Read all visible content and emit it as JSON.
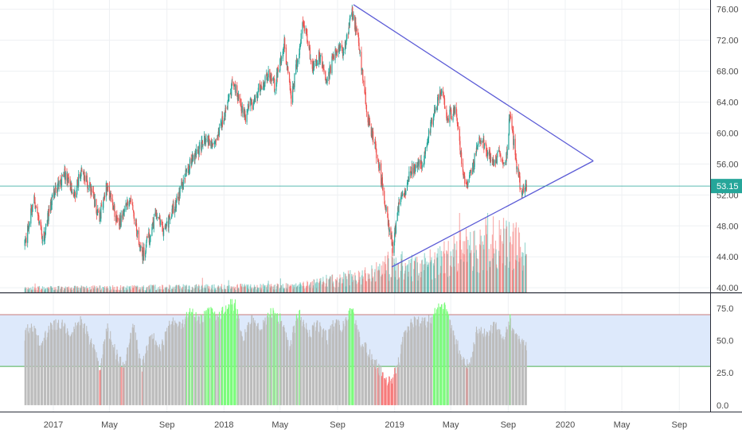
{
  "colors": {
    "up": "#26a69a",
    "down": "#ef5350",
    "triangle": "#5b5bd6",
    "price_line": "#26a69a",
    "grid": "#eef0f3",
    "axis_text": "#4a4a4a",
    "rsi_fill": "#bdbdbd",
    "rsi_band": "#dde9fb",
    "rsi_upper_line": "#c97b7b",
    "rsi_lower_line": "#4caf50",
    "rsi_overbought": "#7cfc7c",
    "rsi_oversold": "#f77b7b",
    "price_label_bg": "#26a69a"
  },
  "chart_data": [
    {
      "type": "candlestick",
      "y_ticks": [
        "76.00",
        "72.00",
        "68.00",
        "64.00",
        "60.00",
        "56.00",
        "52.00",
        "48.00",
        "44.00",
        "40.00"
      ],
      "ylim": [
        39.4,
        77.2
      ],
      "last_price": 53.15,
      "last_price_label": "53.15",
      "price_path": [
        [
          "2016-11-01",
          45.5
        ],
        [
          "2016-11-20",
          51.5
        ],
        [
          "2016-12-10",
          46.0
        ],
        [
          "2016-12-31",
          52.0
        ],
        [
          "2017-01-25",
          54.8
        ],
        [
          "2017-02-15",
          52.0
        ],
        [
          "2017-03-01",
          55.0
        ],
        [
          "2017-03-20",
          53.0
        ],
        [
          "2017-04-10",
          49.0
        ],
        [
          "2017-04-25",
          53.5
        ],
        [
          "2017-05-20",
          48.0
        ],
        [
          "2017-06-15",
          51.5
        ],
        [
          "2017-07-10",
          44.0
        ],
        [
          "2017-08-10",
          49.5
        ],
        [
          "2017-08-25",
          47.0
        ],
        [
          "2017-09-20",
          51.0
        ],
        [
          "2017-10-20",
          56.0
        ],
        [
          "2017-11-25",
          59.5
        ],
        [
          "2017-12-15",
          58.5
        ],
        [
          "2018-01-20",
          66.5
        ],
        [
          "2018-02-15",
          62.0
        ],
        [
          "2018-03-15",
          65.5
        ],
        [
          "2018-04-05",
          67.5
        ],
        [
          "2018-04-20",
          66.0
        ],
        [
          "2018-05-10",
          71.5
        ],
        [
          "2018-05-25",
          64.5
        ],
        [
          "2018-06-20",
          74.5
        ],
        [
          "2018-07-10",
          68.5
        ],
        [
          "2018-07-25",
          70.0
        ],
        [
          "2018-08-10",
          66.5
        ],
        [
          "2018-08-25",
          70.5
        ],
        [
          "2018-09-15",
          70.5
        ],
        [
          "2018-10-01",
          76.0
        ],
        [
          "2018-10-15",
          72.0
        ],
        [
          "2018-11-05",
          62.0
        ],
        [
          "2018-11-25",
          57.0
        ],
        [
          "2018-12-15",
          50.0
        ],
        [
          "2018-12-28",
          45.0
        ],
        [
          "2019-01-10",
          50.5
        ],
        [
          "2019-02-05",
          55.0
        ],
        [
          "2019-03-01",
          56.0
        ],
        [
          "2019-03-20",
          61.0
        ],
        [
          "2019-04-10",
          65.5
        ],
        [
          "2019-04-25",
          62.0
        ],
        [
          "2019-05-10",
          63.0
        ],
        [
          "2019-06-01",
          53.0
        ],
        [
          "2019-06-15",
          55.0
        ],
        [
          "2019-07-01",
          59.5
        ],
        [
          "2019-07-15",
          58.0
        ],
        [
          "2019-08-01",
          56.0
        ],
        [
          "2019-08-15",
          57.5
        ],
        [
          "2019-08-25",
          55.0
        ],
        [
          "2019-09-05",
          62.5
        ],
        [
          "2019-09-15",
          57.5
        ],
        [
          "2019-09-30",
          52.0
        ],
        [
          "2019-10-10",
          53.15
        ]
      ],
      "triangle": {
        "upper": [
          [
            "2018-10-05",
            76.6
          ],
          [
            "2020-03-01",
            56.4
          ]
        ],
        "lower": [
          [
            "2018-12-26",
            42.7
          ],
          [
            "2020-03-01",
            56.4
          ]
        ]
      },
      "volume": {
        "ylim": [
          0,
          60
        ],
        "path": [
          [
            "2016-11-01",
            2
          ],
          [
            "2018-06-01",
            3
          ],
          [
            "2018-09-01",
            6
          ],
          [
            "2018-11-15",
            9
          ],
          [
            "2018-12-25",
            14
          ],
          [
            "2019-03-01",
            12
          ],
          [
            "2019-05-01",
            18
          ],
          [
            "2019-08-01",
            25
          ],
          [
            "2019-10-10",
            22
          ]
        ]
      }
    },
    {
      "type": "area",
      "y_ticks": [
        "75.0",
        "50.0",
        "25.0",
        "0.0"
      ],
      "ylim": [
        -5,
        86
      ],
      "upper_band": 70,
      "lower_band": 30,
      "rsi_path": [
        [
          "2016-11-01",
          55
        ],
        [
          "2016-11-15",
          63
        ],
        [
          "2016-12-05",
          45
        ],
        [
          "2016-12-25",
          60
        ],
        [
          "2017-01-20",
          64
        ],
        [
          "2017-02-05",
          52
        ],
        [
          "2017-03-01",
          66
        ],
        [
          "2017-03-25",
          48
        ],
        [
          "2017-04-12",
          30
        ],
        [
          "2017-04-26",
          62
        ],
        [
          "2017-05-15",
          40
        ],
        [
          "2017-06-01",
          28
        ],
        [
          "2017-06-20",
          62
        ],
        [
          "2017-07-10",
          30
        ],
        [
          "2017-07-28",
          55
        ],
        [
          "2017-08-20",
          45
        ],
        [
          "2017-09-10",
          64
        ],
        [
          "2017-10-01",
          60
        ],
        [
          "2017-10-20",
          72
        ],
        [
          "2017-11-10",
          65
        ],
        [
          "2017-11-30",
          72
        ],
        [
          "2017-12-20",
          68
        ],
        [
          "2018-01-10",
          77
        ],
        [
          "2018-01-25",
          78
        ],
        [
          "2018-02-10",
          50
        ],
        [
          "2018-03-01",
          66
        ],
        [
          "2018-03-20",
          58
        ],
        [
          "2018-04-10",
          72
        ],
        [
          "2018-05-01",
          67
        ],
        [
          "2018-05-20",
          44
        ],
        [
          "2018-06-10",
          73
        ],
        [
          "2018-07-01",
          55
        ],
        [
          "2018-07-20",
          62
        ],
        [
          "2018-08-10",
          52
        ],
        [
          "2018-08-25",
          63
        ],
        [
          "2018-09-15",
          60
        ],
        [
          "2018-10-01",
          74
        ],
        [
          "2018-10-20",
          48
        ],
        [
          "2018-11-10",
          40
        ],
        [
          "2018-11-25",
          30
        ],
        [
          "2018-12-10",
          22
        ],
        [
          "2018-12-25",
          16
        ],
        [
          "2019-01-10",
          34
        ],
        [
          "2019-01-25",
          60
        ],
        [
          "2019-02-15",
          66
        ],
        [
          "2019-03-10",
          63
        ],
        [
          "2019-04-01",
          72
        ],
        [
          "2019-04-15",
          78
        ],
        [
          "2019-05-05",
          55
        ],
        [
          "2019-05-25",
          38
        ],
        [
          "2019-06-10",
          30
        ],
        [
          "2019-06-25",
          58
        ],
        [
          "2019-07-15",
          55
        ],
        [
          "2019-08-05",
          62
        ],
        [
          "2019-08-20",
          48
        ],
        [
          "2019-09-05",
          66
        ],
        [
          "2019-09-20",
          50
        ],
        [
          "2019-10-10",
          44
        ]
      ]
    }
  ],
  "x_axis": {
    "labels": [
      {
        "date": "2017-01-01",
        "text": "2017"
      },
      {
        "date": "2017-05-01",
        "text": "May"
      },
      {
        "date": "2017-09-01",
        "text": "Sep"
      },
      {
        "date": "2018-01-01",
        "text": "2018"
      },
      {
        "date": "2018-05-01",
        "text": "May"
      },
      {
        "date": "2018-09-01",
        "text": "Sep"
      },
      {
        "date": "2019-01-01",
        "text": "2019"
      },
      {
        "date": "2019-05-01",
        "text": "May"
      },
      {
        "date": "2019-09-01",
        "text": "Sep"
      },
      {
        "date": "2020-01-01",
        "text": "2020"
      },
      {
        "date": "2020-05-01",
        "text": "May"
      },
      {
        "date": "2020-09-01",
        "text": "Sep"
      }
    ]
  }
}
